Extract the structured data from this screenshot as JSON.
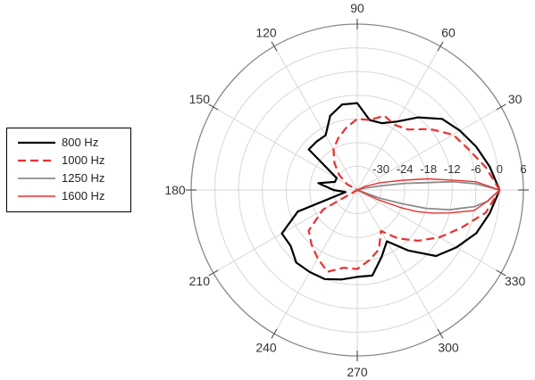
{
  "chart_data": {
    "type": "polar-line",
    "title": "",
    "angular_unit": "degrees",
    "radial_unit": "dB",
    "angle_ticks": [
      0,
      30,
      60,
      90,
      120,
      150,
      180,
      210,
      240,
      270,
      300,
      330
    ],
    "radial_ticks": [
      -30,
      -24,
      -18,
      -12,
      -6,
      0,
      6
    ],
    "radial_range": [
      -36,
      6
    ],
    "grid": true,
    "legend": "left",
    "series": [
      {
        "name": "800 Hz",
        "color": "#000000",
        "dash": "solid",
        "points": [
          [
            0,
            0
          ],
          [
            10,
            -2
          ],
          [
            20,
            -4
          ],
          [
            30,
            -6
          ],
          [
            40,
            -8
          ],
          [
            50,
            -12
          ],
          [
            60,
            -16
          ],
          [
            70,
            -18
          ],
          [
            80,
            -18
          ],
          [
            90,
            -14
          ],
          [
            100,
            -14
          ],
          [
            110,
            -16
          ],
          [
            120,
            -20
          ],
          [
            130,
            -20
          ],
          [
            140,
            -20
          ],
          [
            150,
            -30
          ],
          [
            160,
            -30
          ],
          [
            170,
            -26
          ],
          [
            180,
            -30
          ],
          [
            190,
            -33
          ],
          [
            200,
            -20
          ],
          [
            210,
            -14
          ],
          [
            220,
            -14
          ],
          [
            230,
            -12
          ],
          [
            240,
            -12
          ],
          [
            250,
            -12
          ],
          [
            260,
            -13
          ],
          [
            270,
            -14
          ],
          [
            280,
            -14
          ],
          [
            290,
            -18
          ],
          [
            300,
            -21
          ],
          [
            310,
            -16
          ],
          [
            320,
            -10
          ],
          [
            330,
            -7
          ],
          [
            340,
            -4
          ],
          [
            350,
            -2
          ],
          [
            360,
            0
          ]
        ]
      },
      {
        "name": "1000 Hz",
        "color": "#e8312f",
        "dash": "dashed",
        "points": [
          [
            0,
            0
          ],
          [
            10,
            -3
          ],
          [
            20,
            -6
          ],
          [
            30,
            -8
          ],
          [
            40,
            -12
          ],
          [
            50,
            -16
          ],
          [
            60,
            -17
          ],
          [
            70,
            -16
          ],
          [
            80,
            -18
          ],
          [
            90,
            -18
          ],
          [
            100,
            -20
          ],
          [
            110,
            -22
          ],
          [
            120,
            -24
          ],
          [
            130,
            -27
          ],
          [
            140,
            -30
          ],
          [
            150,
            -33
          ],
          [
            160,
            -36
          ],
          [
            200,
            -36
          ],
          [
            210,
            -26
          ],
          [
            220,
            -20
          ],
          [
            230,
            -18
          ],
          [
            240,
            -16
          ],
          [
            250,
            -14
          ],
          [
            260,
            -16
          ],
          [
            270,
            -16
          ],
          [
            280,
            -18
          ],
          [
            290,
            -20
          ],
          [
            300,
            -24
          ],
          [
            310,
            -20
          ],
          [
            320,
            -16
          ],
          [
            330,
            -12
          ],
          [
            340,
            -8
          ],
          [
            350,
            -3
          ],
          [
            360,
            0
          ]
        ]
      },
      {
        "name": "1250 Hz",
        "color": "#8c8c8c",
        "dash": "solid",
        "points": [
          [
            0,
            0
          ],
          [
            3,
            -6
          ],
          [
            5,
            -12
          ],
          [
            6,
            -18
          ],
          [
            8,
            -24
          ],
          [
            10,
            -30
          ],
          [
            14,
            -34
          ],
          [
            180,
            -36
          ],
          [
            340,
            -30
          ],
          [
            343,
            -24
          ],
          [
            345,
            -18
          ],
          [
            348,
            -12
          ],
          [
            352,
            -6
          ],
          [
            355,
            -3
          ],
          [
            360,
            0
          ]
        ]
      },
      {
        "name": "1600 Hz",
        "color": "#e8312f",
        "dash": "solid",
        "points": [
          [
            0,
            0
          ],
          [
            4,
            -6
          ],
          [
            6,
            -12
          ],
          [
            9,
            -18
          ],
          [
            12,
            -24
          ],
          [
            18,
            -30
          ],
          [
            25,
            -34
          ],
          [
            180,
            -36
          ],
          [
            335,
            -30
          ],
          [
            338,
            -24
          ],
          [
            340,
            -20
          ],
          [
            343,
            -16
          ],
          [
            346,
            -12
          ],
          [
            350,
            -6
          ],
          [
            355,
            -3
          ],
          [
            360,
            0
          ]
        ]
      }
    ]
  }
}
